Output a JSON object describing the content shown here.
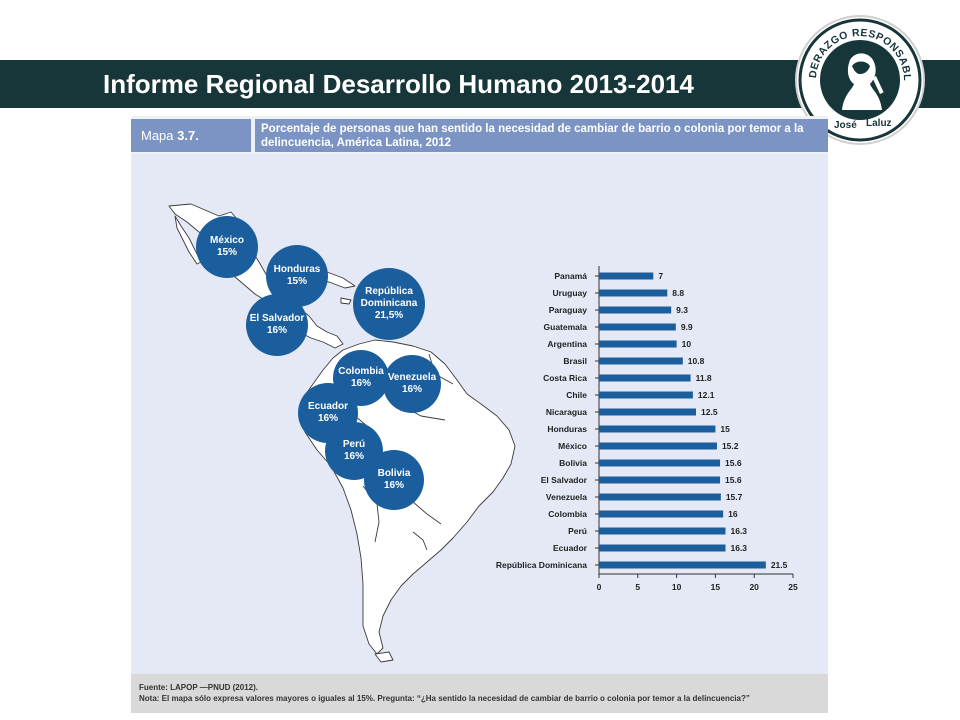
{
  "header": {
    "title": "Informe Regional Desarrollo Humano 2013-2014"
  },
  "logo": {
    "top_text": "LIDERAZGO RESPONSABLE",
    "name_first": "José",
    "name_last": "Laluz"
  },
  "figure": {
    "tag_label": "Mapa",
    "tag_number": "3.7.",
    "title": "Porcentaje de personas que han sentido la necesidad de cambiar de barrio o colonia por temor a la delincuencia, América Latina, 2012",
    "source": "Fuente: LAPOP —PNUD (2012).",
    "note": "Nota: El mapa sólo expresa valores mayores o iguales al 15%. Pregunta: “¿Ha sentido la necesidad de cambiar de barrio o colonia por temor a la delincuencia?”"
  },
  "map_bubbles": [
    {
      "name": "México",
      "value": "15%"
    },
    {
      "name": "Honduras",
      "value": "15%"
    },
    {
      "name": "República Dominicana",
      "value": "21,5%"
    },
    {
      "name": "El Salvador",
      "value": "16%"
    },
    {
      "name": "Colombia",
      "value": "16%"
    },
    {
      "name": "Venezuela",
      "value": "16%"
    },
    {
      "name": "Ecuador",
      "value": "16%"
    },
    {
      "name": "Perú",
      "value": "16%"
    },
    {
      "name": "Bolivia",
      "value": "16%"
    }
  ],
  "colors": {
    "bar": "#1b5e9e",
    "header": "#17363a",
    "title_band": "#7c94c3",
    "land": "#ffffff",
    "background": "#e4e9f5"
  },
  "chart_data": {
    "type": "bar",
    "orientation": "horizontal",
    "categories": [
      "Panamá",
      "Uruguay",
      "Paraguay",
      "Guatemala",
      "Argentina",
      "Brasil",
      "Costa Rica",
      "Chile",
      "Nicaragua",
      "Honduras",
      "México",
      "Bolivia",
      "El Salvador",
      "Venezuela",
      "Colombia",
      "Perú",
      "Ecuador",
      "República Dominicana"
    ],
    "values": [
      7,
      8.8,
      9.3,
      9.9,
      10,
      10.8,
      11.8,
      12.1,
      12.5,
      15,
      15.2,
      15.6,
      15.6,
      15.7,
      16,
      16.3,
      16.3,
      21.5
    ],
    "value_labels": [
      "7",
      "8.8",
      "9.3",
      "9.9",
      "10",
      "10.8",
      "11.8",
      "12.1",
      "12.5",
      "15",
      "15.2",
      "15.6",
      "15.6",
      "15.7",
      "16",
      "16.3",
      "16.3",
      "21.5"
    ],
    "xticks": [
      "0",
      "5",
      "10",
      "15",
      "20",
      "25"
    ],
    "xlim": [
      0,
      25
    ],
    "grid": false
  }
}
